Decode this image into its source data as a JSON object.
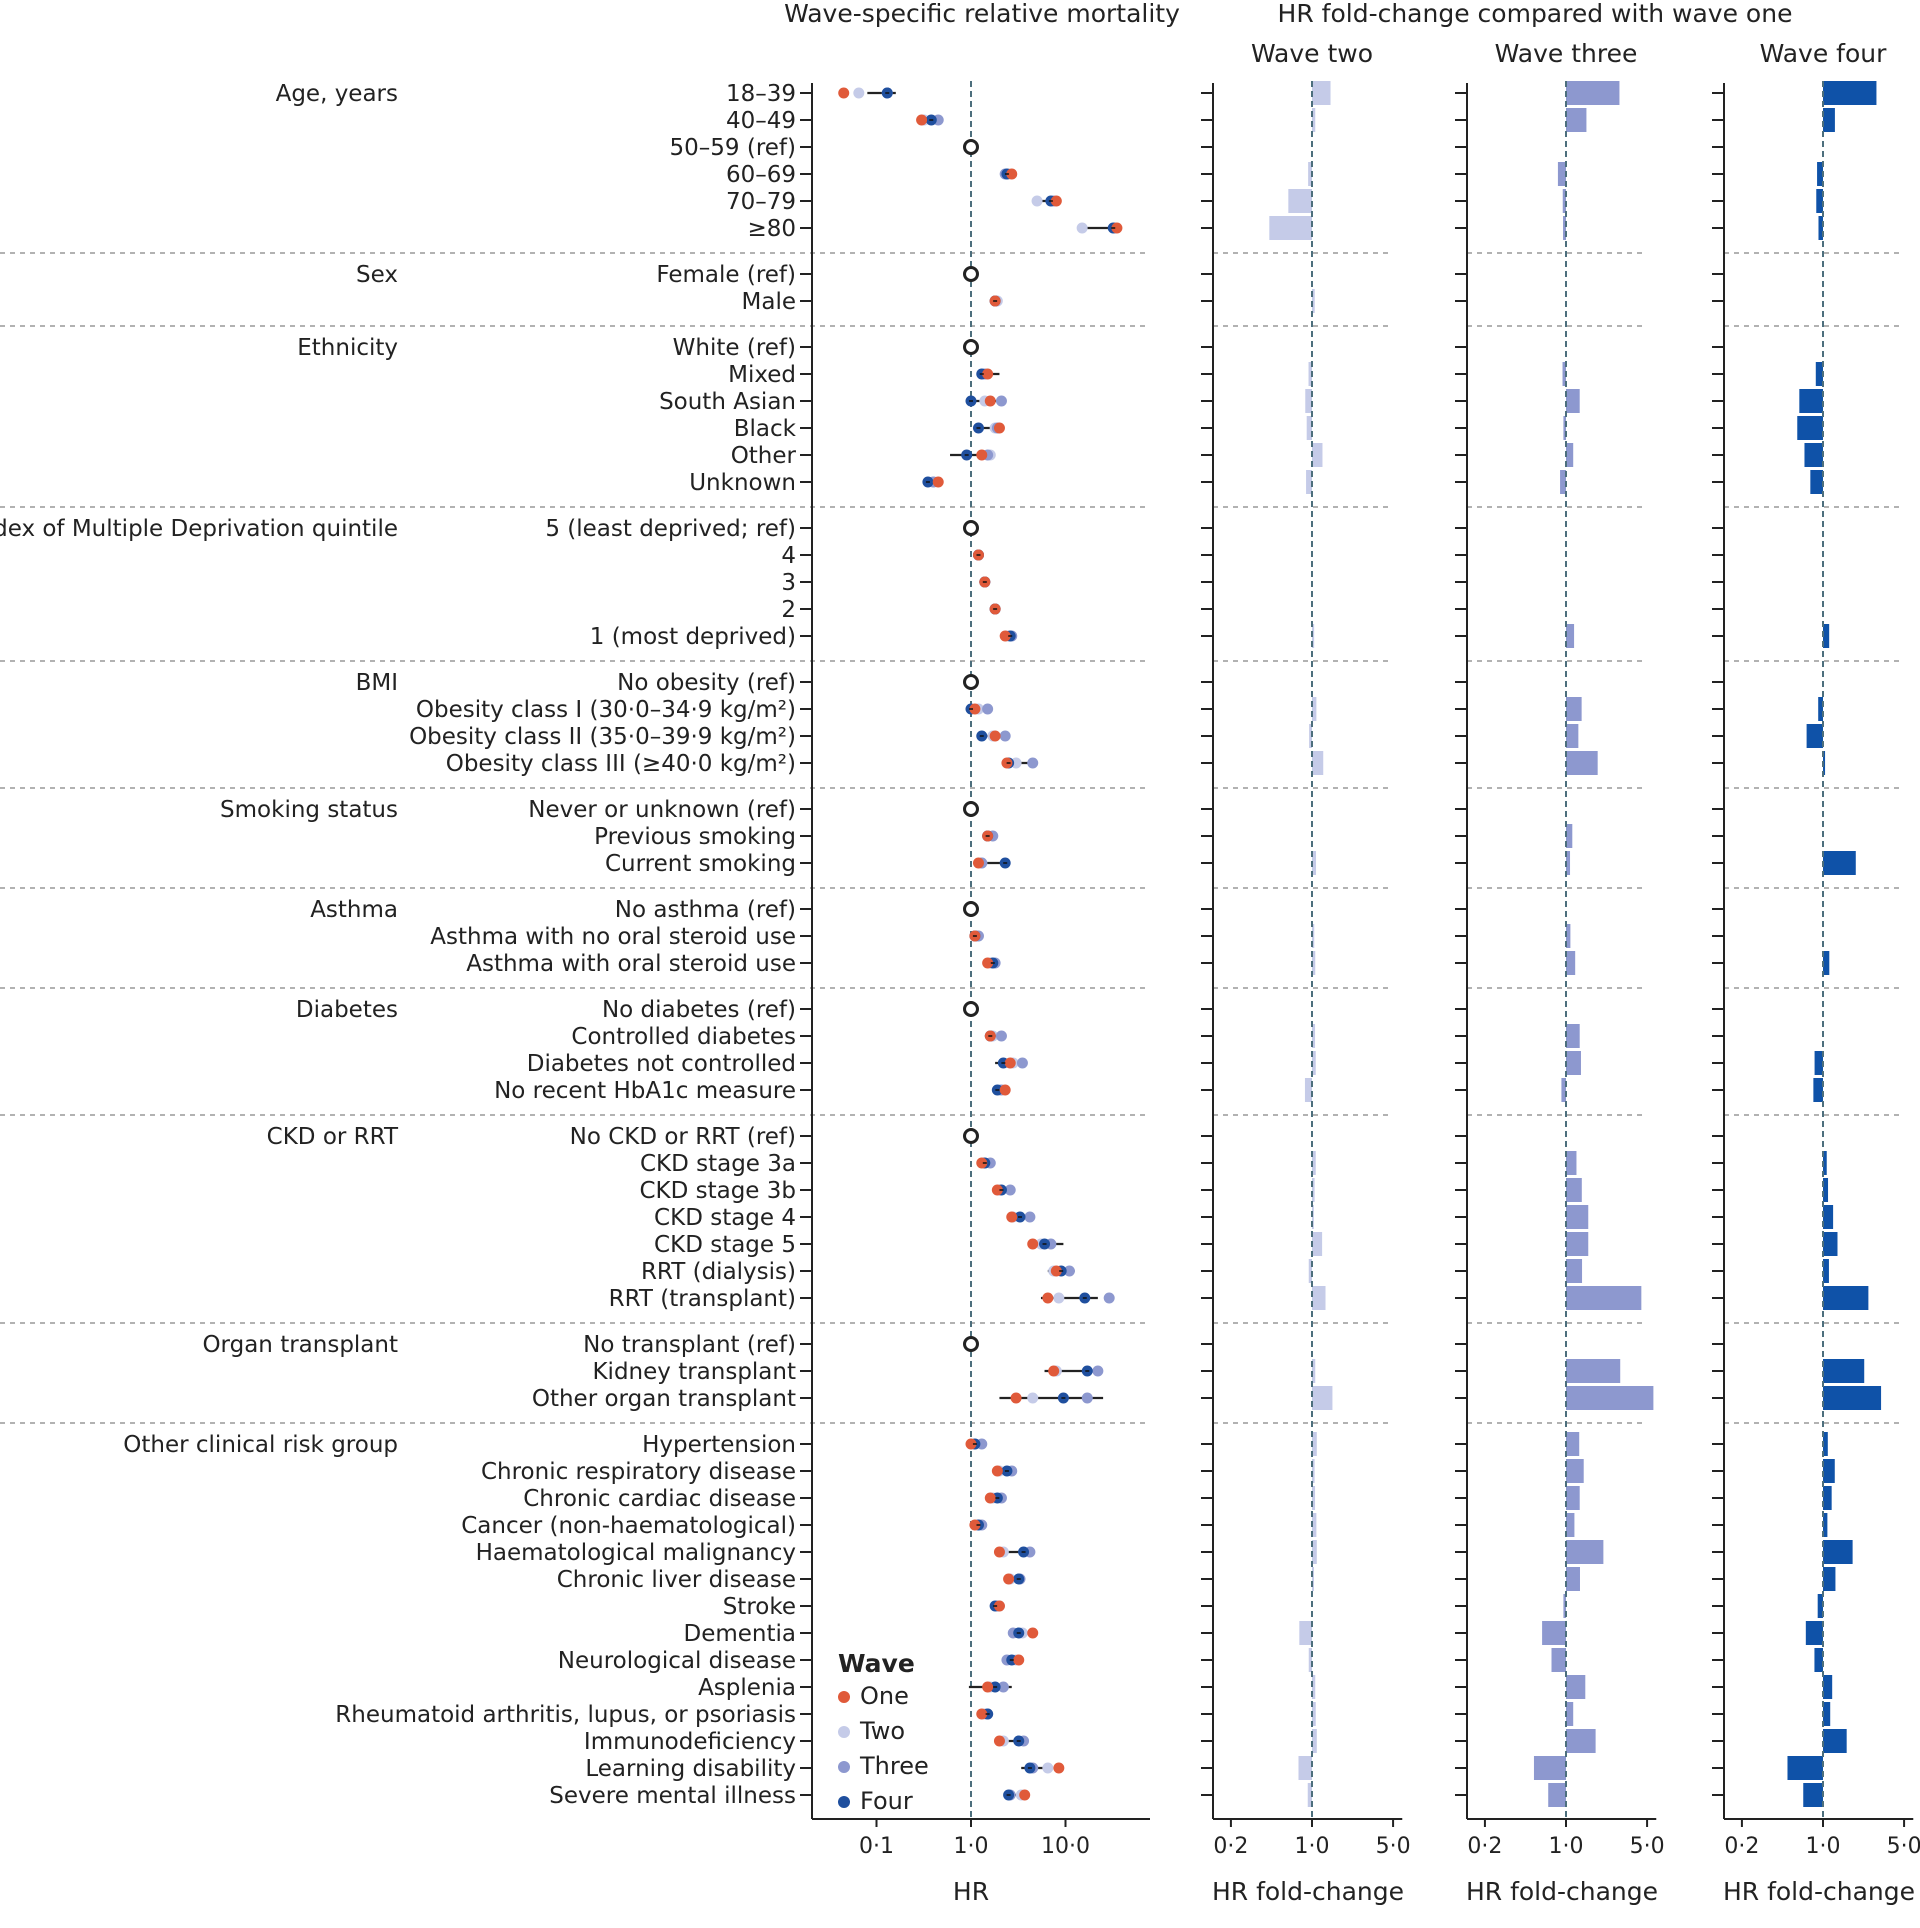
{
  "chart_data": {
    "type": "forest-and-bar",
    "headers": {
      "forest_title": "Wave-specific relative mortality",
      "fold_title": "HR fold-change compared with wave one"
    },
    "forest": {
      "xlabel": "HR",
      "xscale": "log",
      "xlim": [
        0.04,
        50
      ],
      "ticks": [
        0.1,
        1.0,
        10.0
      ],
      "tick_labels": [
        "0·1",
        "1·0",
        "10·0"
      ],
      "reference_line": 1.0
    },
    "fold_panels": [
      {
        "name": "Wave two",
        "color": "#c5cbe8",
        "xlabel": "HR fold-change"
      },
      {
        "name": "Wave three",
        "color": "#8d98cf",
        "xlabel": "HR fold-change"
      },
      {
        "name": "Wave four",
        "color": "#0f52a8",
        "xlabel": "HR fold-change"
      }
    ],
    "fold_axis": {
      "xscale": "log",
      "xlim": [
        0.15,
        6.0
      ],
      "ticks": [
        0.2,
        1.0,
        5.0
      ],
      "tick_labels": [
        "0·2",
        "1·0",
        "5·0"
      ],
      "reference_line": 1.0
    },
    "legend": {
      "title": "Wave",
      "entries": [
        {
          "label": "One",
          "color": "#e05a3a"
        },
        {
          "label": "Two",
          "color": "#c5cbe8"
        },
        {
          "label": "Three",
          "color": "#8d98cf"
        },
        {
          "label": "Four",
          "color": "#1f4f9e"
        }
      ]
    },
    "groups": [
      {
        "label": "Age, years",
        "rows": [
          {
            "label": "18–39",
            "hr": [
              0.045,
              0.065,
              0.13,
              0.13
            ],
            "ci4": [
              0.08,
              0.16
            ]
          },
          {
            "label": "40–49",
            "hr": [
              0.3,
              0.32,
              0.45,
              0.38
            ]
          },
          {
            "label": "50–59 (ref)",
            "ref": true
          },
          {
            "label": "60–69",
            "hr": [
              2.7,
              2.5,
              2.3,
              2.4
            ]
          },
          {
            "label": "70–79",
            "hr": [
              8.0,
              5.0,
              7.5,
              7.0
            ]
          },
          {
            "label": "≥80",
            "hr": [
              35,
              15,
              33,
              32
            ]
          }
        ]
      },
      {
        "label": "Sex",
        "rows": [
          {
            "label": "Female (ref)",
            "ref": true
          },
          {
            "label": "Male",
            "hr": [
              1.8,
              1.9,
              1.8,
              1.8
            ]
          }
        ]
      },
      {
        "label": "Ethnicity",
        "rows": [
          {
            "label": "White (ref)",
            "ref": true
          },
          {
            "label": "Mixed",
            "hr": [
              1.5,
              1.4,
              1.4,
              1.3
            ],
            "ci4": [
              1.15,
              2.0
            ]
          },
          {
            "label": "South Asian",
            "hr": [
              1.6,
              1.4,
              2.1,
              1.0
            ]
          },
          {
            "label": "Black",
            "hr": [
              2.0,
              1.8,
              1.9,
              1.2
            ]
          },
          {
            "label": "Other",
            "hr": [
              1.3,
              1.6,
              1.5,
              0.9
            ],
            "ci4": [
              0.6,
              1.7
            ]
          },
          {
            "label": "Unknown",
            "hr": [
              0.45,
              0.4,
              0.4,
              0.35
            ]
          }
        ]
      },
      {
        "label": "Index of Multiple Deprivation quintile",
        "rows": [
          {
            "label": "5 (least deprived; ref)",
            "ref": true
          },
          {
            "label": "4",
            "hr": [
              1.2,
              1.2,
              1.2,
              1.2
            ]
          },
          {
            "label": "3",
            "hr": [
              1.4,
              1.4,
              1.4,
              1.4
            ]
          },
          {
            "label": "2",
            "hr": [
              1.8,
              1.8,
              1.8,
              1.8
            ]
          },
          {
            "label": "1 (most deprived)",
            "hr": [
              2.3,
              2.4,
              2.7,
              2.6
            ]
          }
        ]
      },
      {
        "label": "BMI",
        "rows": [
          {
            "label": "No obesity (ref)",
            "ref": true
          },
          {
            "label": "Obesity class I (30·0–34·9 kg/m²)",
            "hr": [
              1.1,
              1.2,
              1.5,
              1.0
            ]
          },
          {
            "label": "Obesity class II (35·0–39·9 kg/m²)",
            "hr": [
              1.8,
              1.7,
              2.3,
              1.3
            ]
          },
          {
            "label": "Obesity class III (≥40·0 kg/m²)",
            "hr": [
              2.4,
              3.0,
              4.5,
              2.5
            ]
          }
        ]
      },
      {
        "label": "Smoking status",
        "rows": [
          {
            "label": "Never or unknown (ref)",
            "ref": true
          },
          {
            "label": "Previous smoking",
            "hr": [
              1.5,
              1.5,
              1.7,
              1.5
            ]
          },
          {
            "label": "Current smoking",
            "hr": [
              1.2,
              1.3,
              1.3,
              2.3
            ]
          }
        ]
      },
      {
        "label": "Asthma",
        "rows": [
          {
            "label": "No asthma (ref)",
            "ref": true
          },
          {
            "label": "Asthma with no oral steroid use",
            "hr": [
              1.1,
              1.15,
              1.2,
              1.1
            ]
          },
          {
            "label": "Asthma with oral steroid use",
            "hr": [
              1.5,
              1.6,
              1.8,
              1.7
            ]
          }
        ]
      },
      {
        "label": "Diabetes",
        "rows": [
          {
            "label": "No diabetes (ref)",
            "ref": true
          },
          {
            "label": "Controlled diabetes",
            "hr": [
              1.6,
              1.7,
              2.1,
              1.6
            ]
          },
          {
            "label": "Diabetes not controlled",
            "hr": [
              2.6,
              2.8,
              3.5,
              2.2
            ],
            "ci4": [
              1.8,
              3.3
            ]
          },
          {
            "label": "No recent HbA1c measure",
            "hr": [
              2.3,
              2.0,
              2.1,
              1.9
            ]
          }
        ]
      },
      {
        "label": "CKD or RRT",
        "rows": [
          {
            "label": "No CKD or RRT (ref)",
            "ref": true
          },
          {
            "label": "CKD stage 3a",
            "hr": [
              1.3,
              1.4,
              1.6,
              1.4
            ]
          },
          {
            "label": "CKD stage 3b",
            "hr": [
              1.9,
              2.0,
              2.6,
              2.1
            ]
          },
          {
            "label": "CKD stage 4",
            "hr": [
              2.7,
              2.8,
              4.2,
              3.3
            ]
          },
          {
            "label": "CKD stage 5",
            "hr": [
              4.5,
              5.5,
              7.0,
              6.0
            ],
            "ci4": [
              4.0,
              9.5
            ]
          },
          {
            "label": "RRT (dialysis)",
            "hr": [
              8.0,
              7.5,
              11.0,
              9.0
            ],
            "ci4": [
              6.5,
              12.5
            ]
          },
          {
            "label": "RRT (transplant)",
            "hr": [
              6.5,
              8.5,
              29,
              16
            ],
            "ci4": [
              5.5,
              22
            ]
          }
        ]
      },
      {
        "label": "Organ transplant",
        "rows": [
          {
            "label": "No transplant (ref)",
            "ref": true
          },
          {
            "label": "Kidney transplant",
            "hr": [
              7.5,
              8.0,
              22,
              17
            ],
            "ci4": [
              6.0,
              24
            ]
          },
          {
            "label": "Other organ transplant",
            "hr": [
              3.0,
              4.5,
              17,
              9.5
            ],
            "ci4": [
              2.0,
              25
            ]
          }
        ]
      },
      {
        "label": "Other clinical risk group",
        "rows": [
          {
            "label": "Hypertension",
            "hr": [
              1.0,
              1.1,
              1.3,
              1.1
            ]
          },
          {
            "label": "Chronic respiratory disease",
            "hr": [
              1.9,
              2.0,
              2.7,
              2.4
            ]
          },
          {
            "label": "Chronic cardiac disease",
            "hr": [
              1.6,
              1.7,
              2.1,
              1.9
            ]
          },
          {
            "label": "Cancer (non-haematological)",
            "hr": [
              1.1,
              1.2,
              1.3,
              1.2
            ]
          },
          {
            "label": "Haematological malignancy",
            "hr": [
              2.0,
              2.2,
              4.2,
              3.6
            ]
          },
          {
            "label": "Chronic liver disease",
            "hr": [
              2.5,
              2.6,
              3.3,
              3.2
            ]
          },
          {
            "label": "Stroke",
            "hr": [
              2.0,
              2.0,
              1.9,
              1.8
            ]
          },
          {
            "label": "Dementia",
            "hr": [
              4.5,
              3.5,
              2.8,
              3.2
            ]
          },
          {
            "label": "Neurological disease",
            "hr": [
              3.2,
              3.0,
              2.4,
              2.7
            ]
          },
          {
            "label": "Asplenia",
            "hr": [
              1.5,
              1.6,
              2.2,
              1.8
            ],
            "ci4": [
              0.95,
              2.7
            ]
          },
          {
            "label": "Rheumatoid arthritis, lupus, or psoriasis",
            "hr": [
              1.3,
              1.4,
              1.5,
              1.5
            ]
          },
          {
            "label": "Immunodeficiency",
            "hr": [
              2.0,
              2.2,
              3.6,
              3.2
            ]
          },
          {
            "label": "Learning disability",
            "hr": [
              8.5,
              6.5,
              4.5,
              4.2
            ],
            "ci4": [
              3.4,
              6.5
            ]
          },
          {
            "label": "Severe mental illness",
            "hr": [
              3.7,
              3.4,
              2.6,
              2.5
            ]
          }
        ]
      }
    ]
  }
}
